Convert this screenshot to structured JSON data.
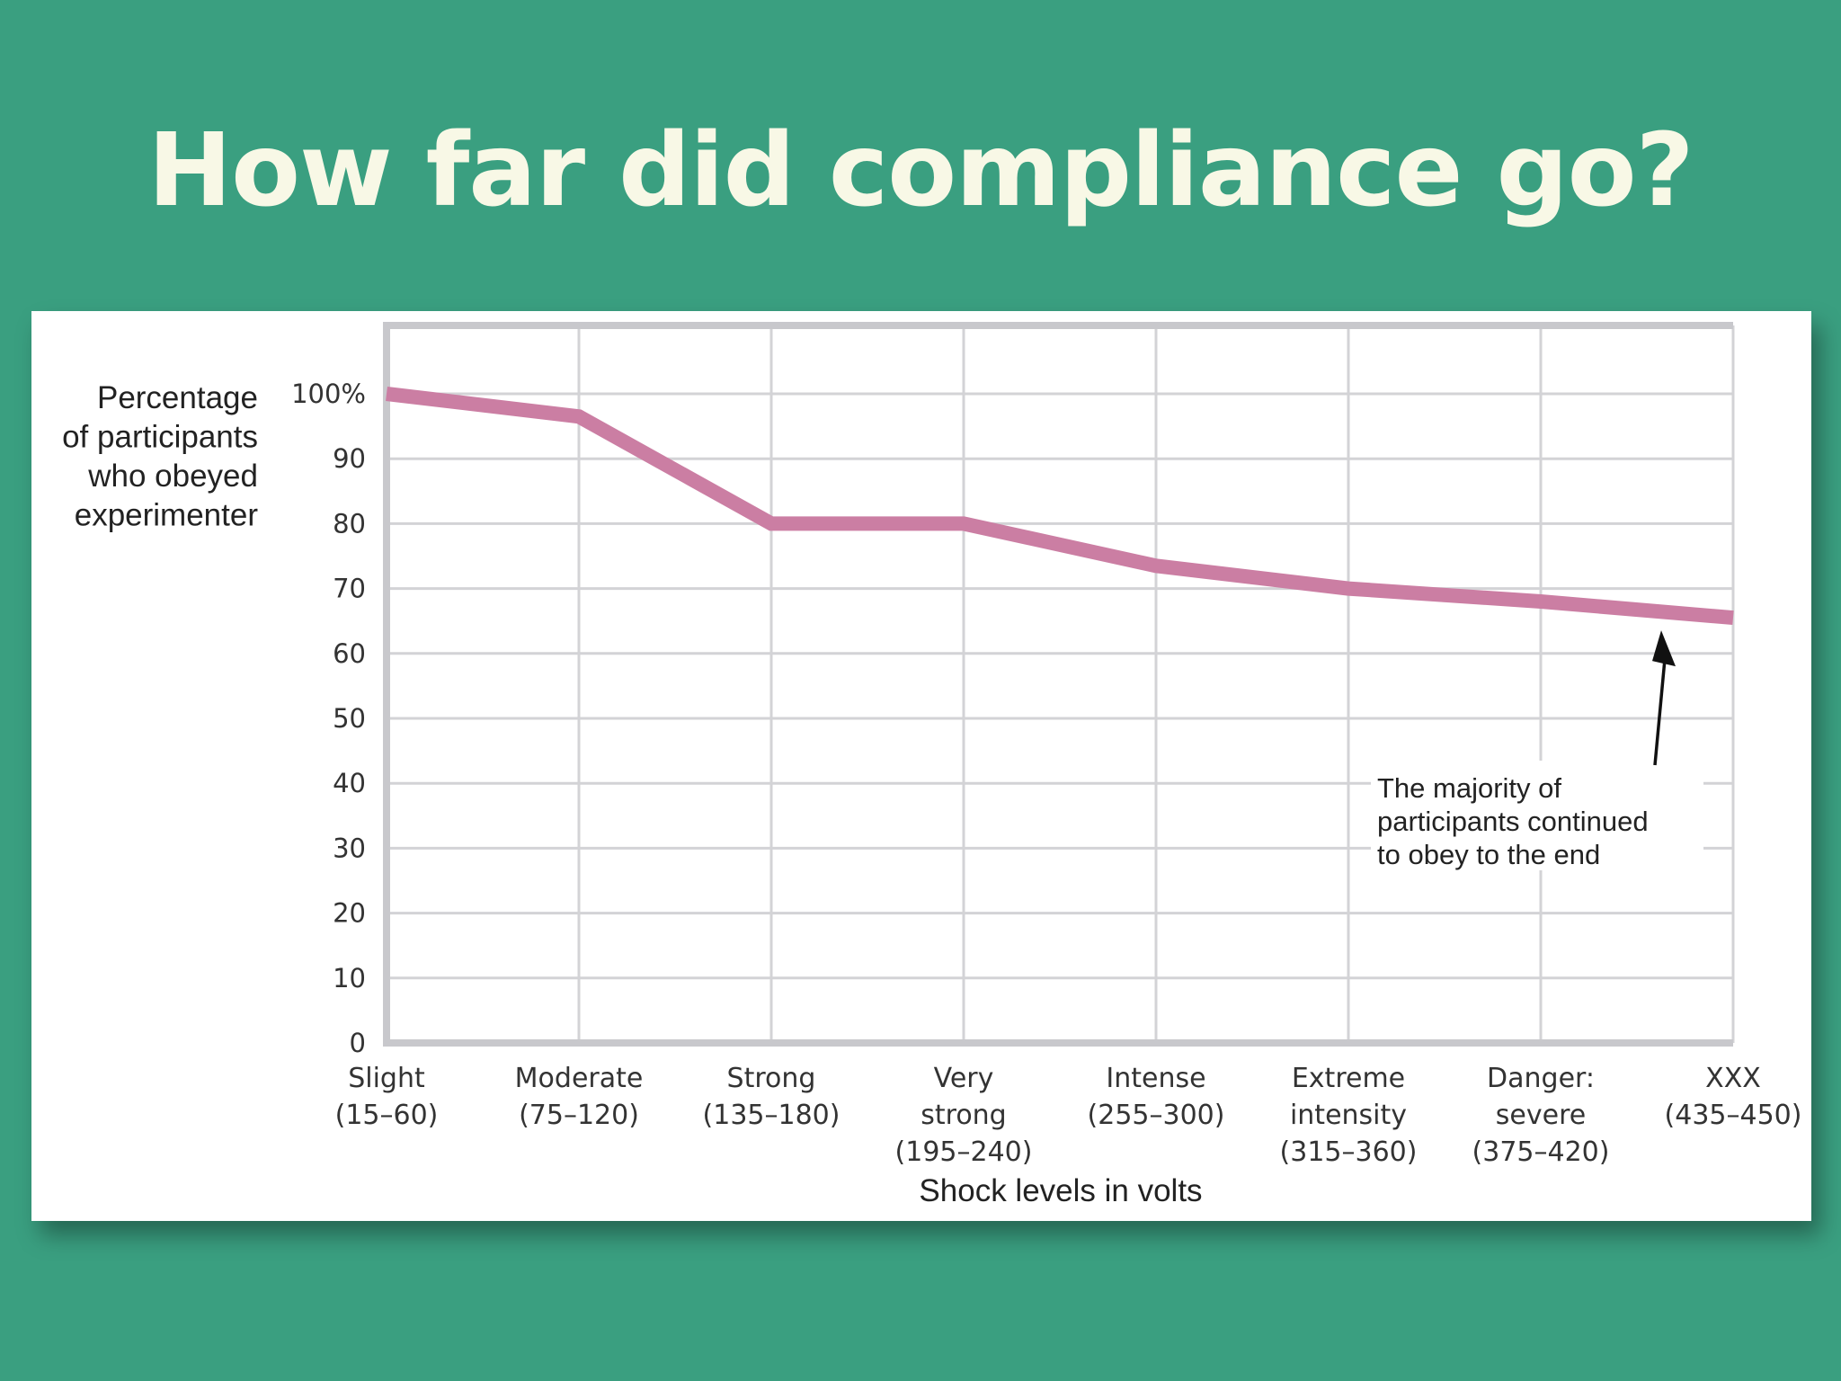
{
  "slide": {
    "title": "How far did compliance go?"
  },
  "chart_data": {
    "type": "line",
    "title": "",
    "ylabel_lines": [
      "Percentage",
      "of participants",
      "who obeyed",
      "experimenter"
    ],
    "xlabel": "Shock levels in volts",
    "ylim": [
      0,
      100
    ],
    "yticks": [
      0,
      10,
      20,
      30,
      40,
      50,
      60,
      70,
      80,
      90,
      100
    ],
    "ytick_labels": [
      "0",
      "10",
      "20",
      "30",
      "40",
      "50",
      "60",
      "70",
      "80",
      "90",
      "100%"
    ],
    "categories": [
      [
        "Slight",
        "(15–60)"
      ],
      [
        "Moderate",
        "(75–120)"
      ],
      [
        "Strong",
        "(135–180)"
      ],
      [
        "Very",
        "strong",
        "(195–240)"
      ],
      [
        "Intense",
        "(255–300)"
      ],
      [
        "Extreme",
        "intensity",
        "(315–360)"
      ],
      [
        "Danger:",
        "severe",
        "(375–420)"
      ],
      [
        "XXX",
        "(435–450)"
      ]
    ],
    "series": [
      {
        "values": [
          100,
          96.5,
          80,
          80,
          73.5,
          70,
          68,
          65.5
        ],
        "color": "#cb7ea3"
      }
    ],
    "grid": true,
    "annotation": {
      "lines": [
        "The majority of",
        "participants continued",
        "to obey to the end"
      ],
      "points_to_category_index": 7
    }
  }
}
